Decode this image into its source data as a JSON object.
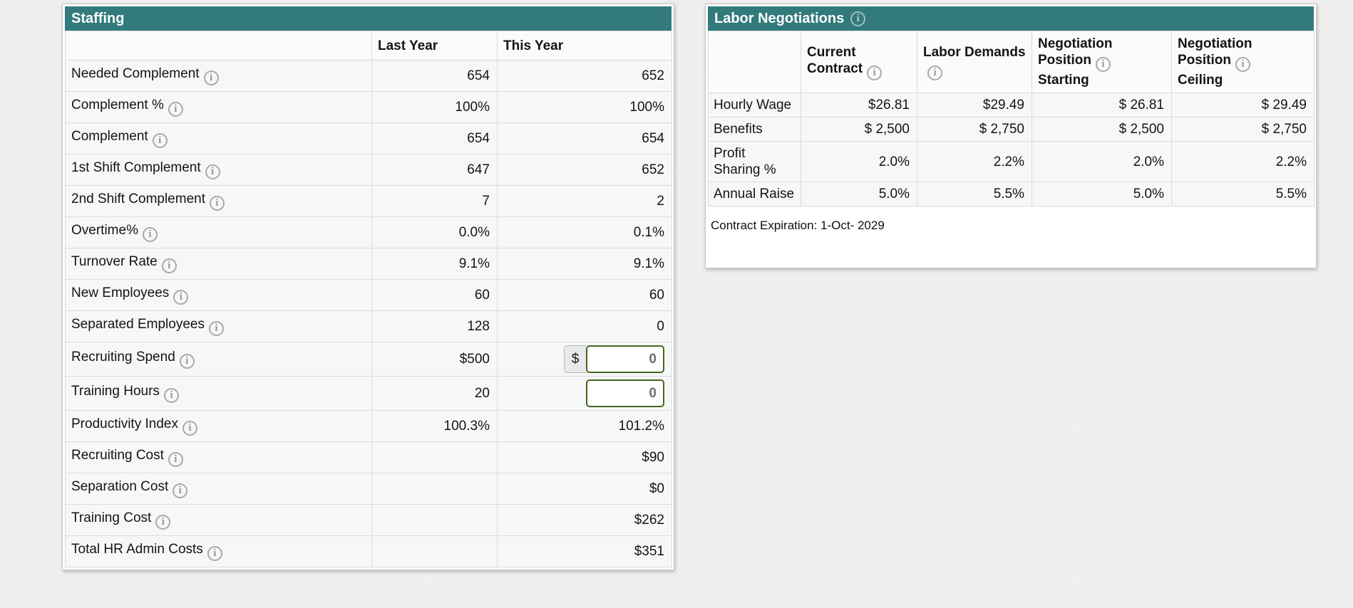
{
  "staffing": {
    "title": "Staffing",
    "columns": [
      "",
      "Last Year",
      "This Year"
    ],
    "rows": [
      {
        "label": "Needed Complement",
        "has_info": true,
        "last": "654",
        "this": "652"
      },
      {
        "label": "Complement %",
        "has_info": true,
        "last": "100%",
        "this": "100%"
      },
      {
        "label": "Complement",
        "has_info": true,
        "last": "654",
        "this": "654"
      },
      {
        "label": "1st Shift Complement",
        "has_info": true,
        "last": "647",
        "this": "652"
      },
      {
        "label": "2nd Shift Complement",
        "has_info": true,
        "last": "7",
        "this": "2"
      },
      {
        "label": "Overtime%",
        "has_info": true,
        "last": "0.0%",
        "this": "0.1%"
      },
      {
        "label": "Turnover Rate",
        "has_info": true,
        "last": "9.1%",
        "this": "9.1%"
      },
      {
        "label": "New Employees",
        "has_info": true,
        "last": "60",
        "this": "60"
      },
      {
        "label": "Separated Employees",
        "has_info": true,
        "last": "128",
        "this": "0"
      },
      {
        "label": "Recruiting Spend",
        "has_info": true,
        "last": "$500",
        "input": {
          "prefix": "$",
          "value": "0",
          "name": "recruiting-spend-input"
        }
      },
      {
        "label": "Training Hours",
        "has_info": true,
        "last": "20",
        "input": {
          "value": "0",
          "name": "training-hours-input"
        }
      },
      {
        "label": "Productivity Index",
        "has_info": true,
        "last": "100.3%",
        "this": "101.2%"
      },
      {
        "label": "Recruiting Cost",
        "has_info": true,
        "last": "",
        "this": "$90"
      },
      {
        "label": "Separation Cost",
        "has_info": true,
        "last": "",
        "this": "$0"
      },
      {
        "label": "Training Cost",
        "has_info": true,
        "last": "",
        "this": "$262"
      },
      {
        "label": "Total HR Admin Costs",
        "has_info": true,
        "last": "",
        "this": "$351"
      }
    ]
  },
  "labor": {
    "title": "Labor Negotiations",
    "title_has_info": true,
    "columns": [
      {
        "label": "",
        "has_info": false
      },
      {
        "label": "Current Contract",
        "has_info": true
      },
      {
        "label": "Labor Demands",
        "has_info": true
      },
      {
        "label": "Negotiation Position",
        "has_info": true,
        "sub": "Starting"
      },
      {
        "label": "Negotiation Position",
        "has_info": true,
        "sub": "Ceiling"
      }
    ],
    "rows": [
      {
        "label": "Hourly Wage",
        "values": [
          "$26.81",
          "$29.49",
          "$ 26.81",
          "$ 29.49"
        ]
      },
      {
        "label": "Benefits",
        "values": [
          "$ 2,500",
          "$ 2,750",
          "$ 2,500",
          "$ 2,750"
        ]
      },
      {
        "label": "Profit Sharing %",
        "values": [
          "2.0%",
          "2.2%",
          "2.0%",
          "2.2%"
        ]
      },
      {
        "label": "Annual Raise",
        "values": [
          "5.0%",
          "5.5%",
          "5.0%",
          "5.5%"
        ]
      }
    ],
    "footer": "Contract Expiration: 1-Oct- 2029"
  },
  "icons": {
    "info_glyph": "i"
  },
  "colors": {
    "header_teal": "#327a7c",
    "input_border_green": "#44671d",
    "cell_bg": "#f7f7f7",
    "page_bg": "#f2f1ef"
  }
}
